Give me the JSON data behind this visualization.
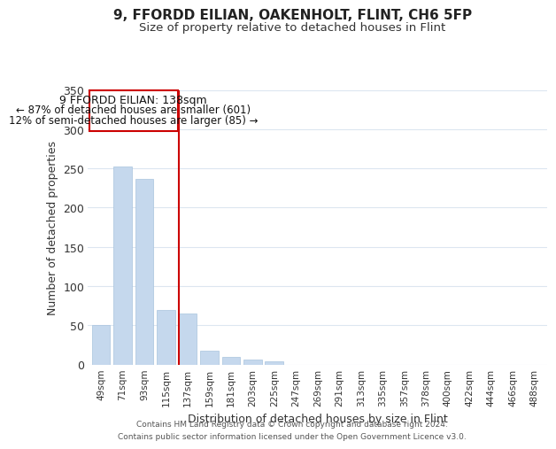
{
  "title": "9, FFORDD EILIAN, OAKENHOLT, FLINT, CH6 5FP",
  "subtitle": "Size of property relative to detached houses in Flint",
  "xlabel": "Distribution of detached houses by size in Flint",
  "ylabel": "Number of detached properties",
  "categories": [
    "49sqm",
    "71sqm",
    "93sqm",
    "115sqm",
    "137sqm",
    "159sqm",
    "181sqm",
    "203sqm",
    "225sqm",
    "247sqm",
    "269sqm",
    "291sqm",
    "313sqm",
    "335sqm",
    "357sqm",
    "378sqm",
    "400sqm",
    "422sqm",
    "444sqm",
    "466sqm",
    "488sqm"
  ],
  "values": [
    50,
    252,
    236,
    70,
    65,
    18,
    10,
    6,
    4,
    0,
    0,
    0,
    0,
    0,
    0,
    0,
    0,
    0,
    0,
    0,
    0
  ],
  "bar_color": "#c5d8ed",
  "highlight_bar_index": 4,
  "highlight_line_color": "#cc0000",
  "ylim": [
    0,
    350
  ],
  "yticks": [
    0,
    50,
    100,
    150,
    200,
    250,
    300,
    350
  ],
  "annotation_title": "9 FFORDD EILIAN: 138sqm",
  "annotation_line1": "← 87% of detached houses are smaller (601)",
  "annotation_line2": "12% of semi-detached houses are larger (85) →",
  "annotation_box_color": "#ffffff",
  "annotation_box_edge_color": "#cc0000",
  "footer_line1": "Contains HM Land Registry data © Crown copyright and database right 2024.",
  "footer_line2": "Contains public sector information licensed under the Open Government Licence v3.0.",
  "background_color": "#ffffff",
  "grid_color": "#dce6f0"
}
